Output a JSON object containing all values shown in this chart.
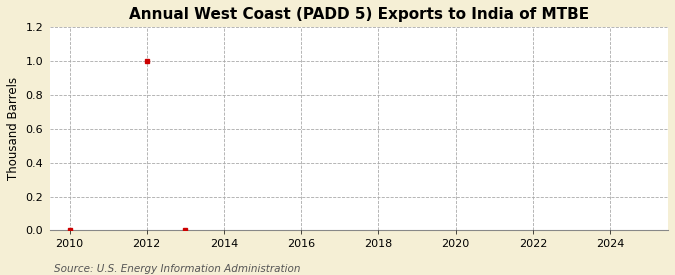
{
  "title": "Annual West Coast (PADD 5) Exports to India of MTBE",
  "ylabel": "Thousand Barrels",
  "source": "Source: U.S. Energy Information Administration",
  "background_color": "#f5efd5",
  "plot_background_color": "#ffffff",
  "data_x": [
    2010,
    2012,
    2013
  ],
  "data_y": [
    0.0,
    1.0,
    0.0
  ],
  "marker_color": "#cc0000",
  "marker_size": 3.5,
  "xlim": [
    2009.5,
    2025.5
  ],
  "ylim": [
    0.0,
    1.2
  ],
  "yticks": [
    0.0,
    0.2,
    0.4,
    0.6,
    0.8,
    1.0,
    1.2
  ],
  "xticks": [
    2010,
    2012,
    2014,
    2016,
    2018,
    2020,
    2022,
    2024
  ],
  "grid_color": "#aaaaaa",
  "grid_linestyle": "--",
  "title_fontsize": 11,
  "label_fontsize": 8.5,
  "tick_fontsize": 8,
  "source_fontsize": 7.5
}
